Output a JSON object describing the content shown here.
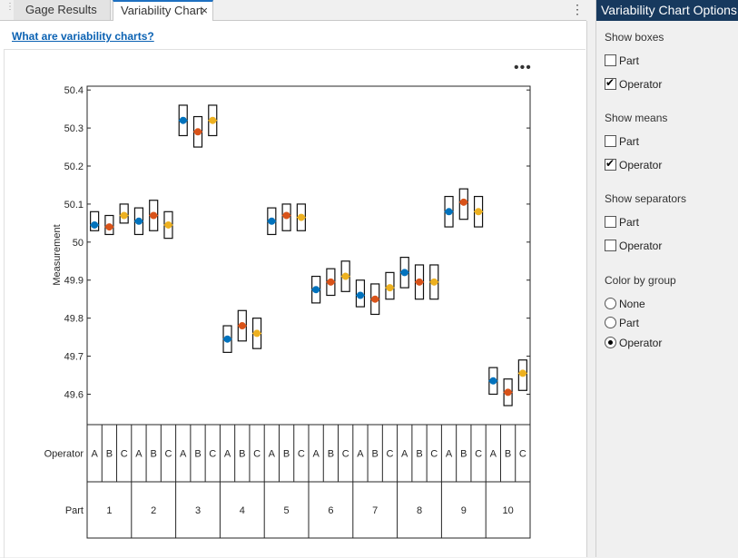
{
  "tabs": [
    {
      "label": "Gage Results"
    },
    {
      "label": "Variability Chart"
    }
  ],
  "close_glyph": "×",
  "kebab_glyph": "⋮",
  "more_glyph": "•••",
  "help_link": "What are variability charts?",
  "panel": {
    "title": "Variability Chart Options",
    "sections": [
      {
        "title": "Show boxes",
        "options": [
          {
            "label": "Part",
            "checked": false
          },
          {
            "label": "Operator",
            "checked": true
          }
        ]
      },
      {
        "title": "Show means",
        "options": [
          {
            "label": "Part",
            "checked": false
          },
          {
            "label": "Operator",
            "checked": true
          }
        ]
      },
      {
        "title": "Show separators",
        "options": [
          {
            "label": "Part",
            "checked": false
          },
          {
            "label": "Operator",
            "checked": false
          }
        ]
      },
      {
        "title": "Color by group",
        "radios": [
          {
            "label": "None",
            "selected": false
          },
          {
            "label": "Part",
            "selected": false
          },
          {
            "label": "Operator",
            "selected": true
          }
        ]
      }
    ]
  },
  "chart_data": {
    "type": "scatter",
    "ylabel": "Measurement",
    "ylim": [
      49.52,
      50.41
    ],
    "yticks": [
      "50.4",
      "50.3",
      "50.2",
      "50.1",
      "50",
      "49.9",
      "49.8",
      "49.7",
      "49.6"
    ],
    "ytick_values": [
      50.4,
      50.3,
      50.2,
      50.1,
      50.0,
      49.9,
      49.8,
      49.7,
      49.6
    ],
    "row_labels": {
      "operator": "Operator",
      "part": "Part"
    },
    "operators": [
      "A",
      "B",
      "C"
    ],
    "parts": [
      "1",
      "2",
      "3",
      "4",
      "5",
      "6",
      "7",
      "8",
      "9",
      "10"
    ],
    "colors": {
      "A": "#0072bd",
      "B": "#d95319",
      "C": "#edb120"
    },
    "groups": [
      {
        "part": "1",
        "operator": "A",
        "min": 50.03,
        "max": 50.08,
        "mean": 50.045
      },
      {
        "part": "1",
        "operator": "B",
        "min": 50.02,
        "max": 50.07,
        "mean": 50.04
      },
      {
        "part": "1",
        "operator": "C",
        "min": 50.05,
        "max": 50.1,
        "mean": 50.07
      },
      {
        "part": "2",
        "operator": "A",
        "min": 50.02,
        "max": 50.09,
        "mean": 50.055
      },
      {
        "part": "2",
        "operator": "B",
        "min": 50.03,
        "max": 50.11,
        "mean": 50.07
      },
      {
        "part": "2",
        "operator": "C",
        "min": 50.01,
        "max": 50.08,
        "mean": 50.045
      },
      {
        "part": "3",
        "operator": "A",
        "min": 50.28,
        "max": 50.36,
        "mean": 50.32
      },
      {
        "part": "3",
        "operator": "B",
        "min": 50.25,
        "max": 50.33,
        "mean": 50.29
      },
      {
        "part": "3",
        "operator": "C",
        "min": 50.28,
        "max": 50.36,
        "mean": 50.32
      },
      {
        "part": "4",
        "operator": "A",
        "min": 49.71,
        "max": 49.78,
        "mean": 49.745
      },
      {
        "part": "4",
        "operator": "B",
        "min": 49.74,
        "max": 49.82,
        "mean": 49.78
      },
      {
        "part": "4",
        "operator": "C",
        "min": 49.72,
        "max": 49.8,
        "mean": 49.76
      },
      {
        "part": "5",
        "operator": "A",
        "min": 50.02,
        "max": 50.09,
        "mean": 50.055
      },
      {
        "part": "5",
        "operator": "B",
        "min": 50.03,
        "max": 50.1,
        "mean": 50.07
      },
      {
        "part": "5",
        "operator": "C",
        "min": 50.03,
        "max": 50.1,
        "mean": 50.065
      },
      {
        "part": "6",
        "operator": "A",
        "min": 49.84,
        "max": 49.91,
        "mean": 49.875
      },
      {
        "part": "6",
        "operator": "B",
        "min": 49.86,
        "max": 49.93,
        "mean": 49.895
      },
      {
        "part": "6",
        "operator": "C",
        "min": 49.87,
        "max": 49.95,
        "mean": 49.91
      },
      {
        "part": "7",
        "operator": "A",
        "min": 49.83,
        "max": 49.9,
        "mean": 49.86
      },
      {
        "part": "7",
        "operator": "B",
        "min": 49.81,
        "max": 49.89,
        "mean": 49.85
      },
      {
        "part": "7",
        "operator": "C",
        "min": 49.85,
        "max": 49.92,
        "mean": 49.88
      },
      {
        "part": "8",
        "operator": "A",
        "min": 49.88,
        "max": 49.96,
        "mean": 49.92
      },
      {
        "part": "8",
        "operator": "B",
        "min": 49.85,
        "max": 49.94,
        "mean": 49.895
      },
      {
        "part": "8",
        "operator": "C",
        "min": 49.85,
        "max": 49.94,
        "mean": 49.895
      },
      {
        "part": "9",
        "operator": "A",
        "min": 50.04,
        "max": 50.12,
        "mean": 50.08
      },
      {
        "part": "9",
        "operator": "B",
        "min": 50.06,
        "max": 50.14,
        "mean": 50.105
      },
      {
        "part": "9",
        "operator": "C",
        "min": 50.04,
        "max": 50.12,
        "mean": 50.08
      },
      {
        "part": "10",
        "operator": "A",
        "min": 49.6,
        "max": 49.67,
        "mean": 49.635
      },
      {
        "part": "10",
        "operator": "B",
        "min": 49.57,
        "max": 49.64,
        "mean": 49.605
      },
      {
        "part": "10",
        "operator": "C",
        "min": 49.61,
        "max": 49.69,
        "mean": 49.655
      }
    ]
  }
}
